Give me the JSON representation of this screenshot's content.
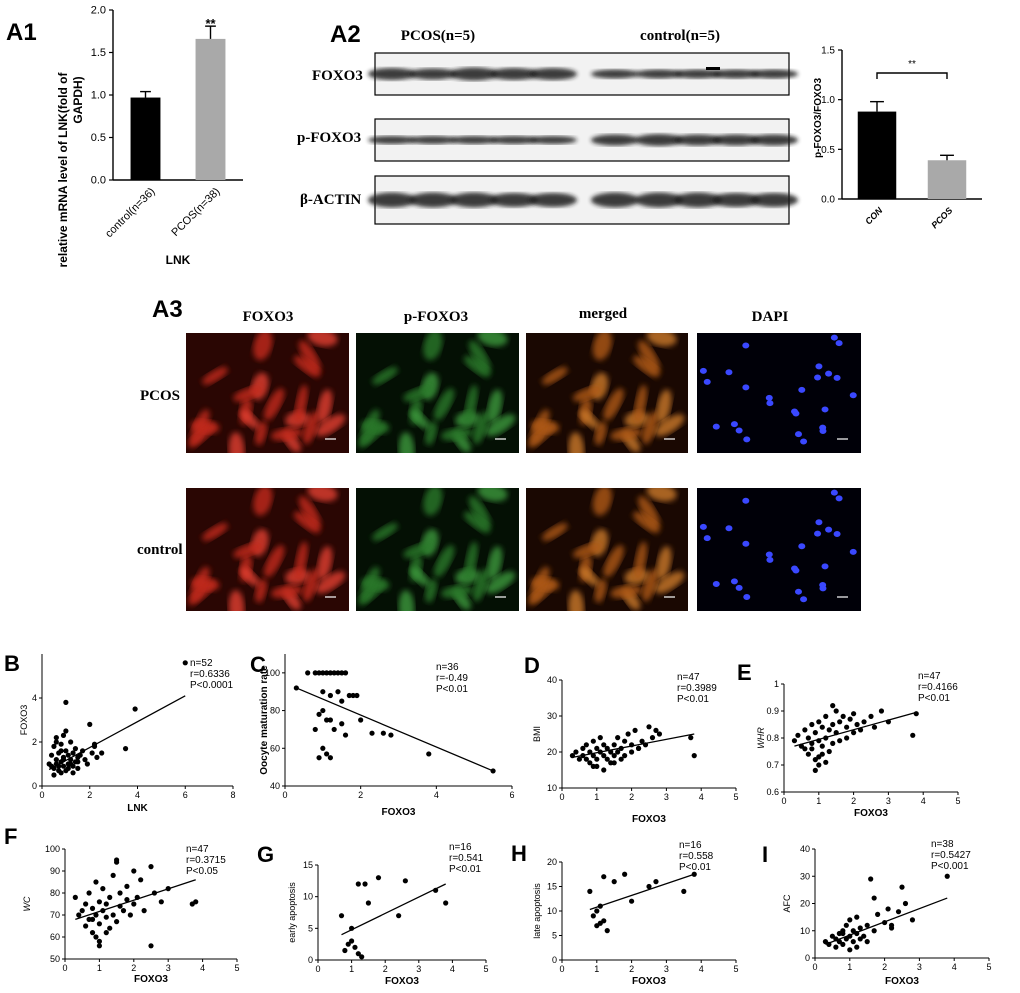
{
  "colors": {
    "black": "#000000",
    "gray": "#a9a9a9",
    "red": "#c0281f",
    "green": "#2f8a2f",
    "blue": "#1a1ad0"
  },
  "panels": {
    "A1": {
      "letter": "A1",
      "title_line1": "relative mRNA level of LNK(fold of",
      "title_line2": "GAPDH)",
      "xlabel": "LNK",
      "sig": "**"
    },
    "A2": {
      "letter": "A2",
      "group_left": "PCOS(n=5)",
      "group_right": "control(n=5)",
      "rows": [
        "FOXO3",
        "p-FOXO3",
        "β-ACTIN"
      ],
      "ylabel": "p-FOXO3/FOXO3",
      "sig": "**"
    },
    "A3": {
      "letter": "A3",
      "columns": [
        "FOXO3",
        "p-FOXO3",
        "merged",
        "DAPI"
      ],
      "rows": [
        "PCOS",
        "control"
      ]
    },
    "scatter": [
      {
        "letter": "B",
        "n": "n=52",
        "r": "r=0.6336",
        "p": "P<0.0001"
      },
      {
        "letter": "C",
        "n": "n=36",
        "r": "r=-0.49",
        "p": "P<0.01"
      },
      {
        "letter": "D",
        "n": "n=47",
        "r": "r=0.3989",
        "p": "P<0.01"
      },
      {
        "letter": "E",
        "n": "n=47",
        "r": "r=0.4166",
        "p": "P<0.01"
      },
      {
        "letter": "F",
        "n": "n=47",
        "r": "r=0.3715",
        "p": "P<0.05"
      },
      {
        "letter": "G",
        "n": "n=16",
        "r": "r=0.541",
        "p": "P<0.01"
      },
      {
        "letter": "H",
        "n": "n=16",
        "r": "r=0.558",
        "p": "P<0.01"
      },
      {
        "letter": "I",
        "n": "n=38",
        "r": "r=0.5427",
        "p": "P<0.001"
      }
    ]
  },
  "chart_data": [
    {
      "id": "A1",
      "type": "bar",
      "categories": [
        "control(n=36)",
        "PCOS(n=38)"
      ],
      "values": [
        0.97,
        1.66
      ],
      "errors": [
        0.07,
        0.15
      ],
      "ylim": [
        0,
        2.0
      ],
      "yticks": [
        0.0,
        0.5,
        1.0,
        1.5,
        2.0
      ],
      "xlabel": "LNK",
      "ylabel": "relative mRNA level of LNK(fold of GAPDH)",
      "annotation": "**"
    },
    {
      "id": "A2",
      "type": "bar",
      "categories": [
        "CON",
        "PCOS"
      ],
      "values": [
        0.88,
        0.39
      ],
      "errors": [
        0.1,
        0.05
      ],
      "ylim": [
        0,
        1.5
      ],
      "yticks": [
        0.0,
        0.5,
        1.0,
        1.5
      ],
      "ylabel": "p-FOXO3/FOXO3",
      "annotation": "**"
    },
    {
      "id": "B",
      "type": "scatter",
      "xlabel": "LNK",
      "ylabel": "FOXO3",
      "xlim": [
        0,
        8
      ],
      "ylim": [
        0,
        6
      ],
      "xticks": [
        0,
        2,
        4,
        6,
        8
      ],
      "yticks": [
        0,
        2,
        4
      ],
      "x": [
        0.3,
        0.4,
        0.5,
        0.5,
        0.6,
        0.6,
        0.7,
        0.7,
        0.8,
        0.8,
        0.8,
        0.9,
        0.9,
        1.0,
        1.0,
        1.0,
        1.1,
        1.1,
        1.2,
        1.2,
        1.3,
        1.3,
        1.4,
        1.4,
        1.5,
        1.5,
        1.6,
        1.7,
        1.8,
        1.9,
        2.0,
        2.1,
        2.2,
        2.3,
        2.5,
        0.5,
        0.6,
        0.7,
        0.9,
        1.0,
        1.1,
        1.2,
        0.8,
        1.3,
        0.6,
        1.5,
        0.9,
        3.5,
        3.9,
        2.2,
        6.0,
        0.4
      ],
      "y": [
        1.0,
        1.4,
        0.8,
        1.8,
        1.2,
        2.2,
        0.9,
        1.5,
        1.1,
        0.6,
        1.9,
        1.3,
        2.3,
        0.7,
        1.6,
        3.8,
        1.0,
        1.4,
        1.2,
        2.0,
        0.9,
        1.5,
        1.7,
        1.1,
        1.3,
        0.8,
        1.4,
        1.6,
        1.2,
        1.0,
        2.8,
        1.5,
        1.8,
        1.3,
        1.5,
        0.5,
        1.0,
        0.7,
        1.2,
        2.5,
        0.8,
        1.0,
        1.6,
        0.6,
        2.0,
        1.1,
        0.9,
        1.7,
        3.5,
        1.9,
        5.6,
        0.9
      ],
      "fit": [
        [
          0.3,
          0.75
        ],
        [
          6.0,
          4.1
        ]
      ]
    },
    {
      "id": "C",
      "type": "scatter",
      "xlabel": "FOXO3",
      "ylabel": "Oocyte maturation rate",
      "xlim": [
        0,
        6
      ],
      "ylim": [
        40,
        110
      ],
      "xticks": [
        0,
        2,
        4,
        6
      ],
      "yticks": [
        40,
        60,
        80,
        100
      ],
      "x": [
        0.3,
        0.6,
        0.8,
        0.9,
        1.0,
        1.0,
        1.1,
        1.2,
        1.2,
        1.3,
        1.4,
        1.4,
        1.5,
        1.5,
        1.6,
        1.7,
        1.8,
        1.9,
        1.0,
        1.1,
        0.8,
        0.9,
        1.2,
        1.3,
        1.5,
        1.6,
        1.0,
        1.1,
        1.2,
        2.0,
        2.3,
        2.6,
        2.8,
        3.8,
        5.5,
        0.9
      ],
      "y": [
        92,
        100,
        100,
        100,
        100,
        90,
        100,
        100,
        88,
        100,
        100,
        90,
        100,
        85,
        100,
        88,
        88,
        88,
        80,
        75,
        70,
        78,
        75,
        70,
        73,
        67,
        60,
        57,
        55,
        75,
        68,
        68,
        67,
        57,
        48,
        55
      ],
      "fit": [
        [
          0.3,
          92
        ],
        [
          5.5,
          48
        ]
      ]
    },
    {
      "id": "D",
      "type": "scatter",
      "xlabel": "FOXO3",
      "ylabel": "BMI",
      "xlim": [
        0,
        5
      ],
      "ylim": [
        10,
        40
      ],
      "xticks": [
        0,
        1,
        2,
        3,
        4,
        5
      ],
      "yticks": [
        10,
        20,
        30,
        40
      ],
      "x": [
        0.3,
        0.4,
        0.5,
        0.6,
        0.6,
        0.7,
        0.7,
        0.8,
        0.8,
        0.9,
        0.9,
        1.0,
        1.0,
        1.0,
        1.1,
        1.1,
        1.2,
        1.2,
        1.3,
        1.3,
        1.4,
        1.4,
        1.5,
        1.5,
        1.6,
        1.6,
        1.7,
        1.8,
        1.8,
        1.9,
        2.0,
        2.0,
        2.1,
        2.2,
        2.3,
        2.4,
        2.5,
        2.6,
        2.7,
        2.8,
        1.2,
        1.5,
        0.9,
        3.7,
        3.8,
        1.7,
        2.2
      ],
      "y": [
        19,
        20,
        18,
        21,
        19,
        22,
        18,
        20,
        17,
        19,
        23,
        21,
        18,
        16,
        20,
        24,
        19,
        22,
        18,
        21,
        20,
        17,
        22,
        19,
        24,
        20,
        21,
        23,
        19,
        25,
        22,
        20,
        26,
        21,
        23,
        22,
        27,
        24,
        26,
        25,
        15,
        17,
        16,
        24,
        19,
        18,
        21
      ],
      "fit": [
        [
          0.3,
          18.5
        ],
        [
          3.8,
          25
        ]
      ]
    },
    {
      "id": "E",
      "type": "scatter",
      "xlabel": "FOXO3",
      "ylabel": "WHR",
      "xlim": [
        0,
        5
      ],
      "ylim": [
        0.6,
        1.0
      ],
      "xticks": [
        0,
        1,
        2,
        3,
        4,
        5
      ],
      "yticks": [
        0.6,
        0.7,
        0.8,
        0.9,
        1.0
      ],
      "x": [
        0.3,
        0.4,
        0.5,
        0.6,
        0.6,
        0.7,
        0.7,
        0.8,
        0.8,
        0.9,
        0.9,
        1.0,
        1.0,
        1.0,
        1.1,
        1.1,
        1.2,
        1.2,
        1.3,
        1.3,
        1.4,
        1.4,
        1.5,
        1.5,
        1.6,
        1.6,
        1.7,
        1.8,
        1.8,
        1.9,
        2.0,
        2.0,
        2.1,
        2.2,
        2.3,
        2.5,
        2.6,
        2.8,
        3.0,
        3.7,
        3.8,
        0.9,
        1.0,
        1.2,
        0.8,
        1.4,
        1.1
      ],
      "y": [
        0.79,
        0.81,
        0.77,
        0.83,
        0.76,
        0.8,
        0.74,
        0.85,
        0.78,
        0.82,
        0.72,
        0.86,
        0.79,
        0.7,
        0.84,
        0.77,
        0.88,
        0.8,
        0.83,
        0.75,
        0.85,
        0.78,
        0.9,
        0.82,
        0.86,
        0.79,
        0.88,
        0.84,
        0.8,
        0.87,
        0.82,
        0.89,
        0.85,
        0.83,
        0.86,
        0.88,
        0.84,
        0.9,
        0.86,
        0.81,
        0.89,
        0.68,
        0.73,
        0.71,
        0.76,
        0.92,
        0.74
      ],
      "fit": [
        [
          0.3,
          0.77
        ],
        [
          3.8,
          0.895
        ]
      ]
    },
    {
      "id": "F",
      "type": "scatter",
      "xlabel": "FOXO3",
      "ylabel": "WC",
      "xlim": [
        0,
        5
      ],
      "ylim": [
        50,
        100
      ],
      "xticks": [
        0,
        1,
        2,
        3,
        4,
        5
      ],
      "yticks": [
        50,
        60,
        70,
        80,
        90,
        100
      ],
      "x": [
        0.3,
        0.4,
        0.5,
        0.6,
        0.6,
        0.7,
        0.7,
        0.8,
        0.8,
        0.9,
        0.9,
        1.0,
        1.0,
        1.0,
        1.1,
        1.1,
        1.2,
        1.2,
        1.3,
        1.3,
        1.4,
        1.4,
        1.5,
        1.5,
        1.6,
        1.6,
        1.7,
        1.8,
        1.8,
        1.9,
        2.0,
        2.0,
        2.1,
        2.2,
        2.3,
        2.5,
        2.6,
        2.8,
        3.0,
        3.7,
        3.8,
        0.9,
        1.0,
        1.2,
        0.8,
        1.5,
        2.5
      ],
      "y": [
        78,
        70,
        72,
        75,
        65,
        68,
        80,
        73,
        62,
        70,
        85,
        76,
        66,
        58,
        72,
        82,
        69,
        75,
        64,
        78,
        88,
        70,
        95,
        67,
        74,
        80,
        72,
        77,
        83,
        70,
        90,
        75,
        78,
        86,
        72,
        92,
        80,
        76,
        82,
        75,
        76,
        60,
        56,
        62,
        68,
        94,
        56
      ],
      "fit": [
        [
          0.3,
          68
        ],
        [
          3.8,
          86
        ]
      ]
    },
    {
      "id": "G",
      "type": "scatter",
      "xlabel": "FOXO3",
      "ylabel": "early apoptosis",
      "xlim": [
        0,
        5
      ],
      "ylim": [
        0,
        15
      ],
      "xticks": [
        0,
        1,
        2,
        3,
        4,
        5
      ],
      "yticks": [
        0,
        5,
        10,
        15
      ],
      "x": [
        0.7,
        0.8,
        0.9,
        1.0,
        1.1,
        1.2,
        1.2,
        1.3,
        1.4,
        1.5,
        1.8,
        2.4,
        2.6,
        3.5,
        3.8,
        1.0
      ],
      "y": [
        7.0,
        1.5,
        2.5,
        3.0,
        2.0,
        12.0,
        1.0,
        0.5,
        12.0,
        9.0,
        13.0,
        7.0,
        12.5,
        11.0,
        9.0,
        5.0
      ],
      "fit": [
        [
          0.7,
          4.0
        ],
        [
          3.8,
          12.0
        ]
      ]
    },
    {
      "id": "H",
      "type": "scatter",
      "xlabel": "FOXO3",
      "ylabel": "late apoptosis",
      "xlim": [
        0,
        5
      ],
      "ylim": [
        0,
        20
      ],
      "xticks": [
        0,
        1,
        2,
        3,
        4,
        5
      ],
      "yticks": [
        0,
        5,
        10,
        15,
        20
      ],
      "x": [
        0.8,
        0.9,
        1.0,
        1.0,
        1.1,
        1.2,
        1.2,
        1.3,
        1.5,
        1.8,
        2.0,
        2.5,
        2.7,
        3.5,
        3.8,
        1.1
      ],
      "y": [
        14.0,
        9.0,
        10.0,
        7.0,
        11.0,
        17.0,
        8.0,
        6.0,
        16.0,
        17.5,
        12.0,
        15.0,
        16.0,
        14.0,
        17.5,
        7.5
      ],
      "fit": [
        [
          0.8,
          10.3
        ],
        [
          3.8,
          17.5
        ]
      ]
    },
    {
      "id": "I",
      "type": "scatter",
      "xlabel": "FOXO3",
      "ylabel": "AFC",
      "xlim": [
        0,
        5
      ],
      "ylim": [
        0,
        40
      ],
      "xticks": [
        0,
        1,
        2,
        3,
        4,
        5
      ],
      "yticks": [
        0,
        10,
        20,
        30,
        40
      ],
      "x": [
        0.3,
        0.4,
        0.5,
        0.6,
        0.6,
        0.7,
        0.7,
        0.8,
        0.8,
        0.9,
        0.9,
        1.0,
        1.0,
        1.1,
        1.1,
        1.2,
        1.2,
        1.3,
        1.3,
        1.4,
        1.5,
        1.5,
        1.6,
        1.7,
        1.8,
        2.0,
        2.1,
        2.2,
        2.4,
        2.5,
        2.6,
        2.8,
        1.0,
        1.2,
        0.8,
        3.8,
        1.7,
        2.2
      ],
      "y": [
        6,
        5,
        8,
        7,
        4,
        9,
        6,
        10,
        5,
        12,
        7,
        8,
        14,
        6,
        10,
        9,
        15,
        7,
        11,
        8,
        12,
        6,
        29,
        10,
        16,
        13,
        18,
        11,
        17,
        26,
        20,
        14,
        3,
        4,
        9,
        30,
        22,
        12
      ],
      "fit": [
        [
          0.3,
          5.0
        ],
        [
          3.8,
          22.0
        ]
      ]
    }
  ]
}
